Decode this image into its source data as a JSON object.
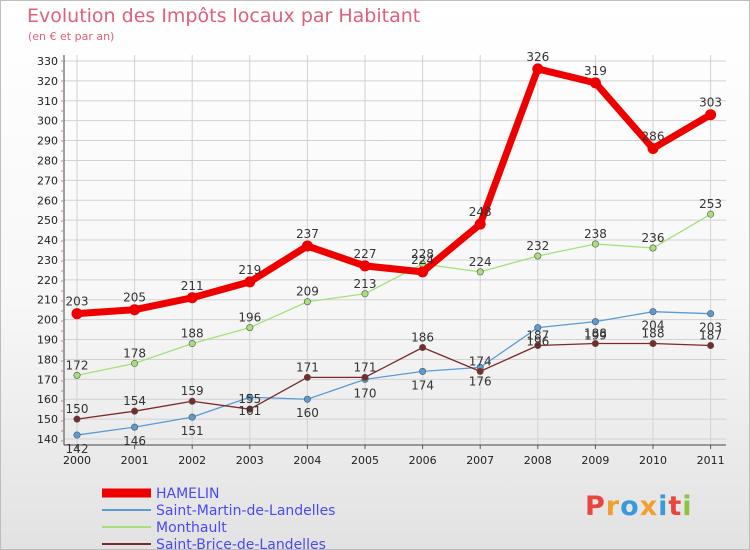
{
  "chart_data": {
    "type": "line",
    "title": "Evolution des Impôts locaux par Habitant",
    "subtitle": "(en € et par an)",
    "x": [
      "2000",
      "2001",
      "2002",
      "2003",
      "2004",
      "2005",
      "2006",
      "2007",
      "2008",
      "2009",
      "2010",
      "2011"
    ],
    "yticks": [
      140,
      150,
      160,
      170,
      180,
      190,
      200,
      210,
      220,
      230,
      240,
      250,
      260,
      270,
      280,
      290,
      300,
      310,
      320,
      330
    ],
    "ylim": [
      137,
      333
    ],
    "grid": true,
    "legend_position": "bottom-left",
    "series": [
      {
        "name": "HAMELIN",
        "color": "#ee0000",
        "values": [
          203,
          205,
          211,
          219,
          237,
          227,
          224,
          248,
          326,
          319,
          286,
          303
        ]
      },
      {
        "name": "Saint-Martin-de-Landelles",
        "color": "#5b9bd5",
        "values": [
          142,
          146,
          151,
          161,
          160,
          170,
          174,
          176,
          196,
          199,
          204,
          203
        ]
      },
      {
        "name": "Monthault",
        "color": "#a6e07a",
        "values": [
          172,
          178,
          188,
          196,
          209,
          213,
          228,
          224,
          232,
          238,
          236,
          253
        ]
      },
      {
        "name": "Saint-Brice-de-Landelles",
        "color": "#7a2a2a",
        "values": [
          150,
          154,
          159,
          155,
          171,
          171,
          186,
          174,
          187,
          188,
          188,
          187
        ]
      }
    ]
  },
  "logo": {
    "text": "Proxiti",
    "colors": [
      "#e8453c",
      "#f0a030",
      "#3a9ad9",
      "#f0a030",
      "#3a9ad9",
      "#e8453c",
      "#8ac440"
    ]
  }
}
